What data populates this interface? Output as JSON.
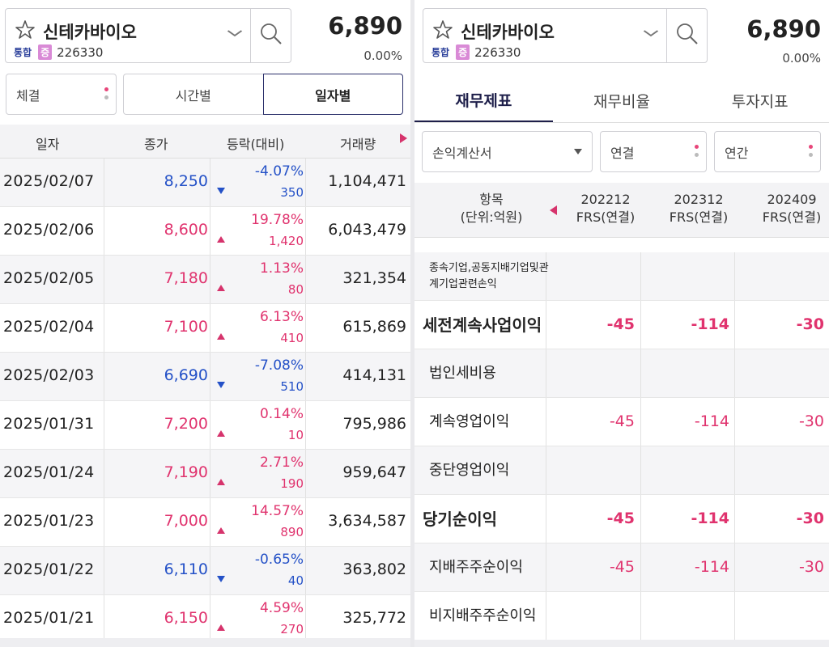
{
  "left": {
    "stock": {
      "name": "신테카바이오",
      "market": "통합",
      "badge": "증",
      "code": "226330",
      "price": "6,890",
      "change_pct": "0.00%"
    },
    "filter": {
      "label": "체결"
    },
    "segments": [
      "시간별",
      "일자별"
    ],
    "columns": [
      "일자",
      "종가",
      "등락(대비)",
      "거래량"
    ],
    "rows": [
      {
        "date": "2025/02/07",
        "close": "8,250",
        "pct": "-4.07%",
        "diff": "350",
        "dir": "down",
        "volume": "1,104,471"
      },
      {
        "date": "2025/02/06",
        "close": "8,600",
        "pct": "19.78%",
        "diff": "1,420",
        "dir": "up",
        "volume": "6,043,479"
      },
      {
        "date": "2025/02/05",
        "close": "7,180",
        "pct": "1.13%",
        "diff": "80",
        "dir": "up",
        "volume": "321,354"
      },
      {
        "date": "2025/02/04",
        "close": "7,100",
        "pct": "6.13%",
        "diff": "410",
        "dir": "up",
        "volume": "615,869"
      },
      {
        "date": "2025/02/03",
        "close": "6,690",
        "pct": "-7.08%",
        "diff": "510",
        "dir": "down",
        "volume": "414,131"
      },
      {
        "date": "2025/01/31",
        "close": "7,200",
        "pct": "0.14%",
        "diff": "10",
        "dir": "up",
        "volume": "795,986"
      },
      {
        "date": "2025/01/24",
        "close": "7,190",
        "pct": "2.71%",
        "diff": "190",
        "dir": "up",
        "volume": "959,647"
      },
      {
        "date": "2025/01/23",
        "close": "7,000",
        "pct": "14.57%",
        "diff": "890",
        "dir": "up",
        "volume": "3,634,587"
      },
      {
        "date": "2025/01/22",
        "close": "6,110",
        "pct": "-0.65%",
        "diff": "40",
        "dir": "down",
        "volume": "363,802"
      },
      {
        "date": "2025/01/21",
        "close": "6,150",
        "pct": "4.59%",
        "diff": "270",
        "dir": "up",
        "volume": "325,772"
      }
    ]
  },
  "right": {
    "stock": {
      "name": "신테카바이오",
      "market": "통합",
      "badge": "증",
      "code": "226330",
      "price": "6,890",
      "change_pct": "0.00%"
    },
    "tabs": [
      "재무제표",
      "재무비율",
      "투자지표"
    ],
    "filters": {
      "statement": "손익계산서",
      "scope": "연결",
      "period": "연간"
    },
    "header": {
      "item": "항목",
      "unit": "(단위:억원)",
      "periods": [
        {
          "period": "202212",
          "type": "FRS(연결)"
        },
        {
          "period": "202312",
          "type": "FRS(연결)"
        },
        {
          "period": "202409",
          "type": "FRS(연결)"
        }
      ]
    },
    "rows": [
      {
        "label": "종속기업,공동지배기업및관계기업관련손익",
        "style": "small",
        "values": [
          "",
          "",
          ""
        ]
      },
      {
        "label": "세전계속사업이익",
        "style": "bold",
        "values": [
          "-45",
          "-114",
          "-30"
        ]
      },
      {
        "label": "법인세비용",
        "style": "normal",
        "values": [
          "",
          "",
          ""
        ]
      },
      {
        "label": "계속영업이익",
        "style": "normal",
        "values": [
          "-45",
          "-114",
          "-30"
        ]
      },
      {
        "label": "중단영업이익",
        "style": "normal",
        "values": [
          "",
          "",
          ""
        ]
      },
      {
        "label": "당기순이익",
        "style": "bold",
        "values": [
          "-45",
          "-114",
          "-30"
        ]
      },
      {
        "label": "지배주주순이익",
        "style": "normal",
        "values": [
          "-45",
          "-114",
          "-30"
        ]
      },
      {
        "label": "비지배주주순이익",
        "style": "normal",
        "values": [
          "",
          "",
          ""
        ]
      }
    ]
  },
  "colors": {
    "up": "#e0336e",
    "down": "#2451c7",
    "accent": "#1e1f4a"
  },
  "icons": {
    "favorite": "star-icon",
    "search": "search-icon",
    "dropdown": "chevron-down-icon"
  }
}
